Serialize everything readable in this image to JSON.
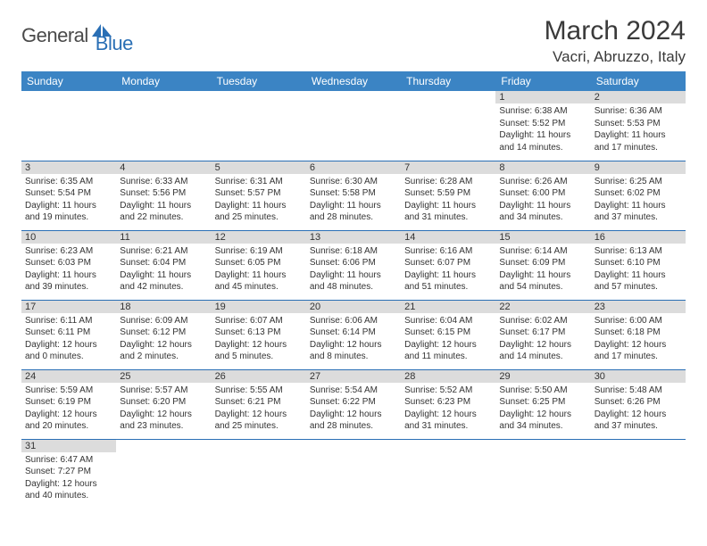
{
  "logo": {
    "general": "General",
    "blue": "Blue"
  },
  "title": "March 2024",
  "location": "Vacri, Abruzzo, Italy",
  "colors": {
    "header_bg": "#3b84c4",
    "header_text": "#ffffff",
    "daynum_bg": "#dcdcdc",
    "border": "#2a6fb5",
    "logo_blue": "#2a6fb5",
    "logo_gray": "#4a4a4a"
  },
  "day_names": [
    "Sunday",
    "Monday",
    "Tuesday",
    "Wednesday",
    "Thursday",
    "Friday",
    "Saturday"
  ],
  "weeks": [
    [
      null,
      null,
      null,
      null,
      null,
      {
        "n": "1",
        "sr": "Sunrise: 6:38 AM",
        "ss": "Sunset: 5:52 PM",
        "d1": "Daylight: 11 hours",
        "d2": "and 14 minutes."
      },
      {
        "n": "2",
        "sr": "Sunrise: 6:36 AM",
        "ss": "Sunset: 5:53 PM",
        "d1": "Daylight: 11 hours",
        "d2": "and 17 minutes."
      }
    ],
    [
      {
        "n": "3",
        "sr": "Sunrise: 6:35 AM",
        "ss": "Sunset: 5:54 PM",
        "d1": "Daylight: 11 hours",
        "d2": "and 19 minutes."
      },
      {
        "n": "4",
        "sr": "Sunrise: 6:33 AM",
        "ss": "Sunset: 5:56 PM",
        "d1": "Daylight: 11 hours",
        "d2": "and 22 minutes."
      },
      {
        "n": "5",
        "sr": "Sunrise: 6:31 AM",
        "ss": "Sunset: 5:57 PM",
        "d1": "Daylight: 11 hours",
        "d2": "and 25 minutes."
      },
      {
        "n": "6",
        "sr": "Sunrise: 6:30 AM",
        "ss": "Sunset: 5:58 PM",
        "d1": "Daylight: 11 hours",
        "d2": "and 28 minutes."
      },
      {
        "n": "7",
        "sr": "Sunrise: 6:28 AM",
        "ss": "Sunset: 5:59 PM",
        "d1": "Daylight: 11 hours",
        "d2": "and 31 minutes."
      },
      {
        "n": "8",
        "sr": "Sunrise: 6:26 AM",
        "ss": "Sunset: 6:00 PM",
        "d1": "Daylight: 11 hours",
        "d2": "and 34 minutes."
      },
      {
        "n": "9",
        "sr": "Sunrise: 6:25 AM",
        "ss": "Sunset: 6:02 PM",
        "d1": "Daylight: 11 hours",
        "d2": "and 37 minutes."
      }
    ],
    [
      {
        "n": "10",
        "sr": "Sunrise: 6:23 AM",
        "ss": "Sunset: 6:03 PM",
        "d1": "Daylight: 11 hours",
        "d2": "and 39 minutes."
      },
      {
        "n": "11",
        "sr": "Sunrise: 6:21 AM",
        "ss": "Sunset: 6:04 PM",
        "d1": "Daylight: 11 hours",
        "d2": "and 42 minutes."
      },
      {
        "n": "12",
        "sr": "Sunrise: 6:19 AM",
        "ss": "Sunset: 6:05 PM",
        "d1": "Daylight: 11 hours",
        "d2": "and 45 minutes."
      },
      {
        "n": "13",
        "sr": "Sunrise: 6:18 AM",
        "ss": "Sunset: 6:06 PM",
        "d1": "Daylight: 11 hours",
        "d2": "and 48 minutes."
      },
      {
        "n": "14",
        "sr": "Sunrise: 6:16 AM",
        "ss": "Sunset: 6:07 PM",
        "d1": "Daylight: 11 hours",
        "d2": "and 51 minutes."
      },
      {
        "n": "15",
        "sr": "Sunrise: 6:14 AM",
        "ss": "Sunset: 6:09 PM",
        "d1": "Daylight: 11 hours",
        "d2": "and 54 minutes."
      },
      {
        "n": "16",
        "sr": "Sunrise: 6:13 AM",
        "ss": "Sunset: 6:10 PM",
        "d1": "Daylight: 11 hours",
        "d2": "and 57 minutes."
      }
    ],
    [
      {
        "n": "17",
        "sr": "Sunrise: 6:11 AM",
        "ss": "Sunset: 6:11 PM",
        "d1": "Daylight: 12 hours",
        "d2": "and 0 minutes."
      },
      {
        "n": "18",
        "sr": "Sunrise: 6:09 AM",
        "ss": "Sunset: 6:12 PM",
        "d1": "Daylight: 12 hours",
        "d2": "and 2 minutes."
      },
      {
        "n": "19",
        "sr": "Sunrise: 6:07 AM",
        "ss": "Sunset: 6:13 PM",
        "d1": "Daylight: 12 hours",
        "d2": "and 5 minutes."
      },
      {
        "n": "20",
        "sr": "Sunrise: 6:06 AM",
        "ss": "Sunset: 6:14 PM",
        "d1": "Daylight: 12 hours",
        "d2": "and 8 minutes."
      },
      {
        "n": "21",
        "sr": "Sunrise: 6:04 AM",
        "ss": "Sunset: 6:15 PM",
        "d1": "Daylight: 12 hours",
        "d2": "and 11 minutes."
      },
      {
        "n": "22",
        "sr": "Sunrise: 6:02 AM",
        "ss": "Sunset: 6:17 PM",
        "d1": "Daylight: 12 hours",
        "d2": "and 14 minutes."
      },
      {
        "n": "23",
        "sr": "Sunrise: 6:00 AM",
        "ss": "Sunset: 6:18 PM",
        "d1": "Daylight: 12 hours",
        "d2": "and 17 minutes."
      }
    ],
    [
      {
        "n": "24",
        "sr": "Sunrise: 5:59 AM",
        "ss": "Sunset: 6:19 PM",
        "d1": "Daylight: 12 hours",
        "d2": "and 20 minutes."
      },
      {
        "n": "25",
        "sr": "Sunrise: 5:57 AM",
        "ss": "Sunset: 6:20 PM",
        "d1": "Daylight: 12 hours",
        "d2": "and 23 minutes."
      },
      {
        "n": "26",
        "sr": "Sunrise: 5:55 AM",
        "ss": "Sunset: 6:21 PM",
        "d1": "Daylight: 12 hours",
        "d2": "and 25 minutes."
      },
      {
        "n": "27",
        "sr": "Sunrise: 5:54 AM",
        "ss": "Sunset: 6:22 PM",
        "d1": "Daylight: 12 hours",
        "d2": "and 28 minutes."
      },
      {
        "n": "28",
        "sr": "Sunrise: 5:52 AM",
        "ss": "Sunset: 6:23 PM",
        "d1": "Daylight: 12 hours",
        "d2": "and 31 minutes."
      },
      {
        "n": "29",
        "sr": "Sunrise: 5:50 AM",
        "ss": "Sunset: 6:25 PM",
        "d1": "Daylight: 12 hours",
        "d2": "and 34 minutes."
      },
      {
        "n": "30",
        "sr": "Sunrise: 5:48 AM",
        "ss": "Sunset: 6:26 PM",
        "d1": "Daylight: 12 hours",
        "d2": "and 37 minutes."
      }
    ],
    [
      {
        "n": "31",
        "sr": "Sunrise: 6:47 AM",
        "ss": "Sunset: 7:27 PM",
        "d1": "Daylight: 12 hours",
        "d2": "and 40 minutes."
      },
      null,
      null,
      null,
      null,
      null,
      null
    ]
  ]
}
